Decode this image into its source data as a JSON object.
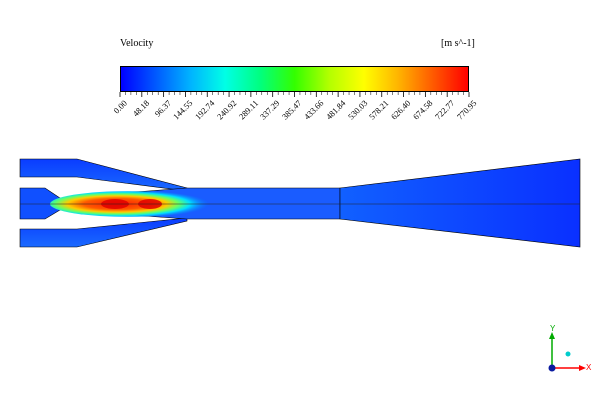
{
  "legend": {
    "title": "Velocity",
    "unit": "[m s^-1]",
    "ticks": [
      "0.00",
      "48.18",
      "96.37",
      "144.55",
      "192.74",
      "240.92",
      "289.11",
      "337.29",
      "385.47",
      "433.66",
      "481.84",
      "530.03",
      "578.21",
      "626.40",
      "674.58",
      "722.77",
      "770.95"
    ],
    "gradient_colors": [
      "#0000ff",
      "#0059ff",
      "#00b3ff",
      "#00ffe6",
      "#00ff80",
      "#33ff00",
      "#b3ff00",
      "#ffff00",
      "#ffb300",
      "#ff5900",
      "#ff0000"
    ]
  },
  "triad": {
    "x_label": "X",
    "y_label": "Y",
    "x_color": "#ff0000",
    "y_color": "#00aa00",
    "z_color": "#00cccc"
  },
  "domain": {
    "base_color": "#1147ff",
    "jet_colors": [
      "#ff1a00",
      "#ff8a00",
      "#ffff00",
      "#66ff66",
      "#00e0ff",
      "#0090ff"
    ]
  }
}
